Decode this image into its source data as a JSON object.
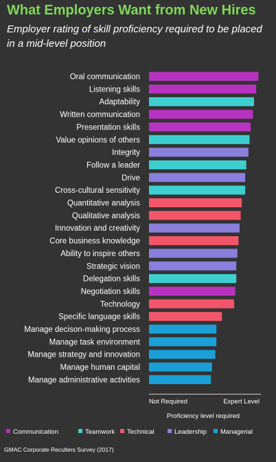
{
  "chart_data": {
    "type": "bar",
    "orientation": "horizontal",
    "title": "What Employers Want from New Hires",
    "subtitle": "Employer rating of skill proficiency required to be placed in a mid-level position",
    "xlabel": "Proficiency level required",
    "x_tick_labels": [
      "Not Required",
      "Expert Level"
    ],
    "xlim": [
      0,
      1
    ],
    "grid": false,
    "legend_position": "bottom",
    "source": "GMAC Corporate Reculters Survey (2017)",
    "colors": {
      "Communication": "#b832c0",
      "Teamwork": "#3dcfcf",
      "Technical": "#f25668",
      "Leadership": "#8a7fdc",
      "Managerial": "#1aa0d6"
    },
    "legend": [
      "Communication",
      "Teamwork",
      "Technical",
      "Leadership",
      "Managerial"
    ],
    "categories": [
      "Oral communication",
      "Listening skills",
      "Adaptability",
      "Written communication",
      "Presentation skills",
      "Value opinions of others",
      "Integrity",
      "Follow a leader",
      "Drive",
      "Cross-cultural sensitivity",
      "Quantitative analysis",
      "Qualitative analysis",
      "Innovation and creativity",
      "Core business knowledge",
      "Ability to inspire others",
      "Strategic vision",
      "Delegation skills",
      "Negotiation skills",
      "Technology",
      "Specific language skills",
      "Manage decison-making process",
      "Manage task environment",
      "Manage strategy and innovation",
      "Manage human capital",
      "Manage administrative activities"
    ],
    "values": [
      0.99,
      0.97,
      0.95,
      0.94,
      0.92,
      0.91,
      0.9,
      0.88,
      0.87,
      0.87,
      0.84,
      0.83,
      0.82,
      0.81,
      0.8,
      0.79,
      0.79,
      0.78,
      0.77,
      0.66,
      0.61,
      0.61,
      0.6,
      0.57,
      0.56
    ],
    "groups": [
      "Communication",
      "Communication",
      "Teamwork",
      "Communication",
      "Communication",
      "Teamwork",
      "Leadership",
      "Teamwork",
      "Leadership",
      "Teamwork",
      "Technical",
      "Technical",
      "Leadership",
      "Technical",
      "Leadership",
      "Leadership",
      "Teamwork",
      "Communication",
      "Technical",
      "Technical",
      "Managerial",
      "Managerial",
      "Managerial",
      "Managerial",
      "Managerial"
    ]
  }
}
